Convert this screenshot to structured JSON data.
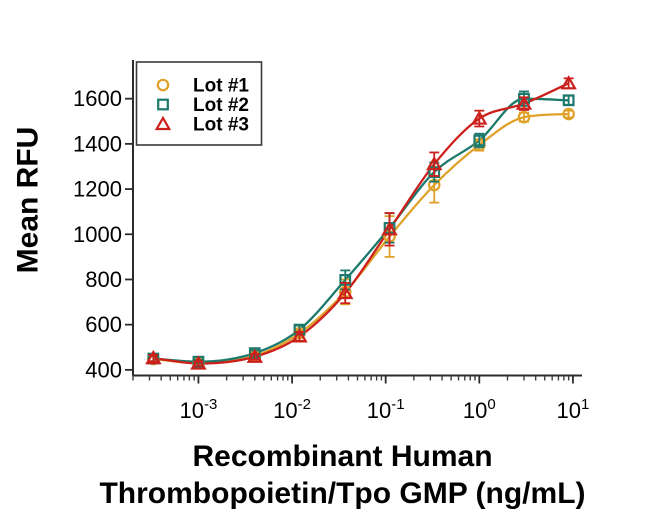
{
  "figure": {
    "background": "#ffffff",
    "y_axis_label": "Mean RFU",
    "x_axis_label_line1": "Recombinant Human",
    "x_axis_label_line2": "Thrombopoietin/Tpo GMP (ng/mL)"
  },
  "chart_data": {
    "type": "line",
    "title": "",
    "xlabel": "Recombinant Human Thrombopoietin/Tpo GMP (ng/mL)",
    "ylabel": "Mean RFU",
    "x_scale": "log",
    "x_unit": "ng/mL",
    "grid": false,
    "legend_position": "top-left",
    "xlim": [
      0.0002,
      12.5
    ],
    "ylim": [
      375,
      1780
    ],
    "y_ticks": [
      400,
      600,
      800,
      1000,
      1200,
      1400,
      1600
    ],
    "x_tick_exponents": [
      -3,
      -2,
      -1,
      0,
      1
    ],
    "x_ng_per_ml": [
      0.00033,
      0.001,
      0.004,
      0.012,
      0.037,
      0.11,
      0.33,
      1,
      3,
      9
    ],
    "axis_color": "#2b2b2b",
    "series": [
      {
        "name": "Lot #1",
        "marker": "circle",
        "color": "#DFA128",
        "values": [
          448,
          430,
          462,
          562,
          745,
          990,
          1218,
          1395,
          1518,
          1532
        ],
        "errors": [
          12,
          8,
          10,
          15,
          55,
          90,
          78,
          25,
          20,
          15
        ]
      },
      {
        "name": "Lot #2",
        "marker": "square",
        "color": "#1B7A6B",
        "values": [
          450,
          436,
          474,
          578,
          798,
          1028,
          1275,
          1415,
          1600,
          1593
        ],
        "errors": [
          12,
          8,
          12,
          18,
          42,
          65,
          42,
          30,
          32,
          20
        ]
      },
      {
        "name": "Lot #3",
        "marker": "triangle",
        "color": "#CC201D",
        "values": [
          452,
          428,
          458,
          548,
          740,
          1022,
          1310,
          1512,
          1578,
          1668
        ],
        "errors": [
          14,
          10,
          12,
          20,
          45,
          72,
          52,
          35,
          28,
          22
        ]
      }
    ]
  }
}
